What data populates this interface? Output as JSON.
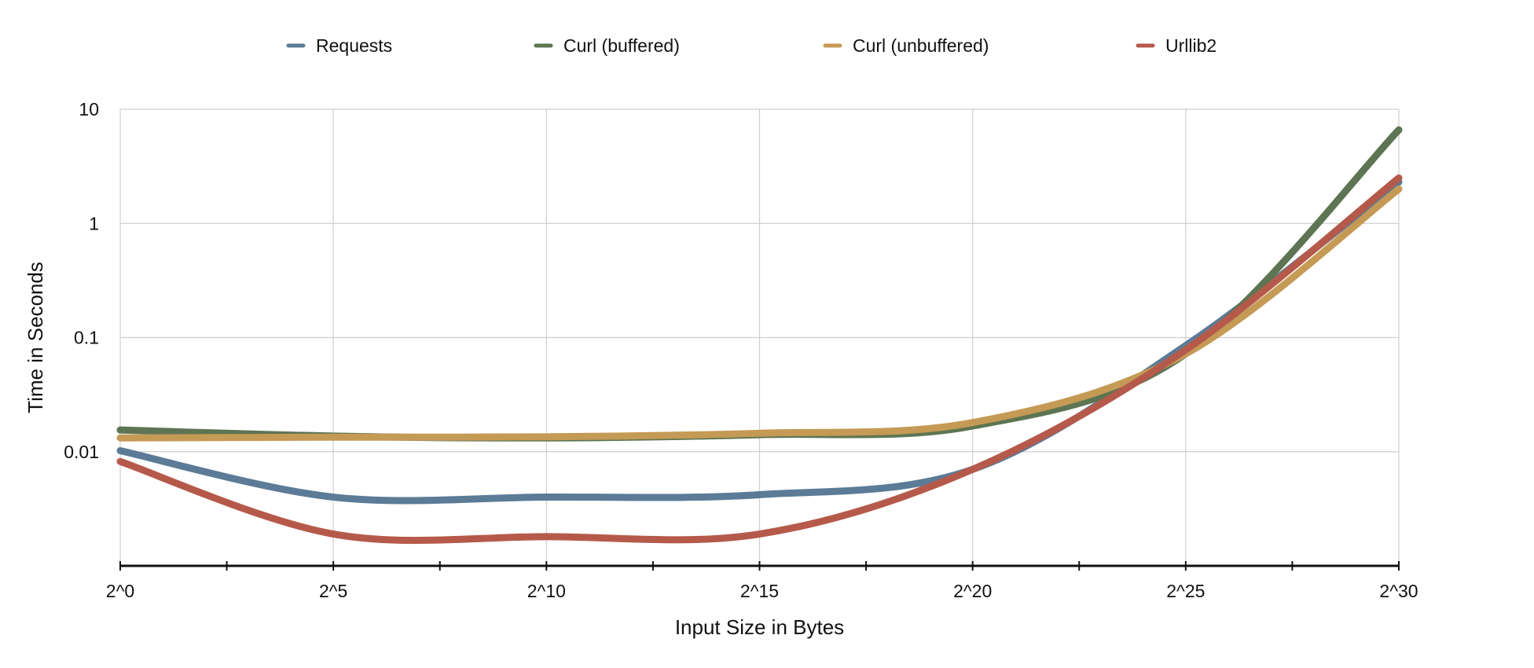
{
  "chart_data": {
    "type": "line",
    "title": "",
    "xlabel": "Input Size in Bytes",
    "ylabel": "Time in Seconds",
    "yscale": "log",
    "ylim": [
      0.001,
      10
    ],
    "xlim": [
      0,
      30
    ],
    "grid": true,
    "legend_position": "top",
    "x_ticks": [
      {
        "value": 0,
        "label": "2^0"
      },
      {
        "value": 5,
        "label": "2^5"
      },
      {
        "value": 10,
        "label": "2^10"
      },
      {
        "value": 15,
        "label": "2^15"
      },
      {
        "value": 20,
        "label": "2^20"
      },
      {
        "value": 25,
        "label": "2^25"
      },
      {
        "value": 30,
        "label": "2^30"
      }
    ],
    "y_ticks": [
      {
        "value": 0.01,
        "label": "0.01"
      },
      {
        "value": 0.1,
        "label": "0.1"
      },
      {
        "value": 1,
        "label": "1"
      },
      {
        "value": 10,
        "label": "10"
      }
    ],
    "x": [
      0,
      5,
      10,
      15,
      20,
      25,
      30
    ],
    "series": [
      {
        "name": "Requests",
        "color": "#5b7b96",
        "values": [
          0.0102,
          0.004,
          0.004,
          0.0042,
          0.007,
          0.085,
          2.3
        ]
      },
      {
        "name": "Curl (buffered)",
        "color": "#5d7552",
        "values": [
          0.0155,
          0.0137,
          0.0132,
          0.0141,
          0.0168,
          0.072,
          6.6
        ]
      },
      {
        "name": "Curl (unbuffered)",
        "color": "#c49a55",
        "values": [
          0.0132,
          0.0134,
          0.0135,
          0.0145,
          0.018,
          0.072,
          2.0
        ]
      },
      {
        "name": "Urllib2",
        "color": "#b55a4b",
        "values": [
          0.0082,
          0.0019,
          0.0018,
          0.0019,
          0.007,
          0.078,
          2.5
        ]
      }
    ]
  }
}
